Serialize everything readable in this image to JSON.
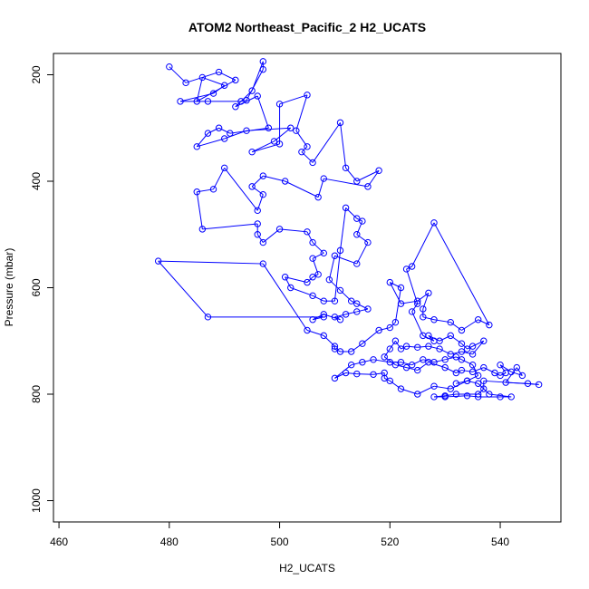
{
  "chart_data": {
    "type": "line",
    "title": "ATOM2 Northeast_Pacific_2 H2_UCATS",
    "xlabel": "H2_UCATS",
    "ylabel": "Pressure (mbar)",
    "xlim": [
      459,
      551
    ],
    "ylim": [
      1040,
      160
    ],
    "y_reversed": true,
    "x_ticks": [
      460,
      480,
      500,
      520,
      540
    ],
    "y_ticks": [
      200,
      400,
      600,
      800,
      1000
    ],
    "grid": false,
    "legend": "none",
    "marker": "open-circle",
    "color": "#0000ff",
    "series": [
      {
        "values": [
          [
            480,
            185
          ],
          [
            483,
            215
          ],
          [
            489,
            195
          ],
          [
            492,
            210
          ],
          [
            485,
            250
          ],
          [
            486,
            205
          ],
          [
            490,
            220
          ],
          [
            488,
            235
          ],
          [
            482,
            250
          ],
          [
            487,
            250
          ],
          [
            493,
            250
          ],
          [
            494,
            248
          ],
          [
            497,
            190
          ],
          [
            497,
            175
          ],
          [
            495,
            230
          ],
          [
            492,
            260
          ],
          [
            496,
            240
          ],
          [
            498,
            300
          ],
          [
            491,
            310
          ],
          [
            489,
            300
          ],
          [
            487,
            310
          ],
          [
            485,
            335
          ],
          [
            490,
            320
          ],
          [
            494,
            305
          ],
          [
            502,
            300
          ],
          [
            499,
            325
          ],
          [
            495,
            345
          ],
          [
            500,
            330
          ],
          [
            500,
            255
          ],
          [
            505,
            238
          ],
          [
            503,
            305
          ],
          [
            505,
            335
          ],
          [
            504,
            345
          ],
          [
            506,
            365
          ],
          [
            511,
            290
          ],
          [
            512,
            375
          ],
          [
            514,
            400
          ],
          [
            518,
            380
          ],
          [
            516,
            410
          ],
          [
            508,
            395
          ],
          [
            507,
            430
          ],
          [
            501,
            400
          ],
          [
            497,
            390
          ],
          [
            495,
            410
          ],
          [
            497,
            425
          ],
          [
            496,
            455
          ],
          [
            490,
            375
          ],
          [
            488,
            415
          ],
          [
            485,
            420
          ],
          [
            486,
            490
          ],
          [
            496,
            480
          ],
          [
            496,
            500
          ],
          [
            497,
            515
          ],
          [
            500,
            490
          ],
          [
            505,
            495
          ],
          [
            506,
            515
          ],
          [
            508,
            535
          ],
          [
            506,
            545
          ],
          [
            507,
            575
          ],
          [
            506,
            580
          ],
          [
            505,
            590
          ],
          [
            501,
            580
          ],
          [
            502,
            600
          ],
          [
            506,
            615
          ],
          [
            508,
            625
          ],
          [
            510,
            625
          ],
          [
            511,
            530
          ],
          [
            512,
            450
          ],
          [
            514,
            470
          ],
          [
            515,
            475
          ],
          [
            514,
            500
          ],
          [
            516,
            515
          ],
          [
            514,
            555
          ],
          [
            510,
            540
          ],
          [
            509,
            585
          ],
          [
            511,
            605
          ],
          [
            513,
            625
          ],
          [
            514,
            630
          ],
          [
            516,
            640
          ],
          [
            514,
            645
          ],
          [
            512,
            650
          ],
          [
            510,
            655
          ],
          [
            511,
            660
          ],
          [
            508,
            650
          ],
          [
            506,
            660
          ],
          [
            508,
            655
          ],
          [
            487,
            655
          ],
          [
            478,
            550
          ],
          [
            497,
            555
          ],
          [
            505,
            680
          ],
          [
            508,
            690
          ],
          [
            510,
            710
          ],
          [
            510,
            715
          ],
          [
            511,
            720
          ],
          [
            513,
            720
          ],
          [
            515,
            705
          ],
          [
            518,
            680
          ],
          [
            520,
            675
          ],
          [
            521,
            665
          ],
          [
            522,
            600
          ],
          [
            520,
            590
          ],
          [
            522,
            630
          ],
          [
            525,
            625
          ],
          [
            527,
            610
          ],
          [
            526,
            640
          ],
          [
            526,
            655
          ],
          [
            528,
            660
          ],
          [
            531,
            665
          ],
          [
            533,
            680
          ],
          [
            536,
            660
          ],
          [
            538,
            670
          ],
          [
            528,
            478
          ],
          [
            524,
            560
          ],
          [
            523,
            565
          ],
          [
            525,
            630
          ],
          [
            524,
            645
          ],
          [
            526,
            690
          ],
          [
            528,
            700
          ],
          [
            527,
            690
          ],
          [
            529,
            700
          ],
          [
            531,
            690
          ],
          [
            533,
            705
          ],
          [
            534,
            715
          ],
          [
            535,
            710
          ],
          [
            537,
            700
          ],
          [
            535,
            725
          ],
          [
            533,
            720
          ],
          [
            531,
            725
          ],
          [
            529,
            715
          ],
          [
            527,
            710
          ],
          [
            525,
            712
          ],
          [
            523,
            710
          ],
          [
            522,
            715
          ],
          [
            521,
            700
          ],
          [
            520,
            715
          ],
          [
            519,
            730
          ],
          [
            521,
            745
          ],
          [
            523,
            750
          ],
          [
            525,
            755
          ],
          [
            527,
            740
          ],
          [
            530,
            750
          ],
          [
            532,
            760
          ],
          [
            533,
            755
          ],
          [
            535,
            758
          ],
          [
            537,
            750
          ],
          [
            539,
            760
          ],
          [
            540,
            765
          ],
          [
            541,
            760
          ],
          [
            540,
            745
          ],
          [
            542,
            758
          ],
          [
            544,
            765
          ],
          [
            543,
            750
          ],
          [
            541,
            778
          ],
          [
            545,
            780
          ],
          [
            547,
            782
          ],
          [
            537,
            775
          ],
          [
            537,
            790
          ],
          [
            536,
            800
          ],
          [
            532,
            800
          ],
          [
            530,
            803
          ],
          [
            528,
            805
          ],
          [
            530,
            805
          ],
          [
            534,
            803
          ],
          [
            536,
            805
          ],
          [
            540,
            805
          ],
          [
            542,
            805
          ],
          [
            538,
            800
          ],
          [
            536,
            780
          ],
          [
            534,
            775
          ],
          [
            531,
            790
          ],
          [
            528,
            785
          ],
          [
            525,
            800
          ],
          [
            522,
            790
          ],
          [
            520,
            775
          ],
          [
            519,
            770
          ],
          [
            519,
            760
          ],
          [
            517,
            763
          ],
          [
            514,
            762
          ],
          [
            512,
            760
          ],
          [
            510,
            770
          ],
          [
            513,
            745
          ],
          [
            515,
            740
          ],
          [
            517,
            735
          ],
          [
            520,
            740
          ],
          [
            522,
            740
          ],
          [
            524,
            745
          ],
          [
            526,
            735
          ],
          [
            528,
            740
          ],
          [
            530,
            735
          ],
          [
            532,
            730
          ],
          [
            533,
            735
          ],
          [
            535,
            745
          ],
          [
            536,
            765
          ],
          [
            534,
            775
          ],
          [
            532,
            780
          ]
        ]
      }
    ]
  }
}
